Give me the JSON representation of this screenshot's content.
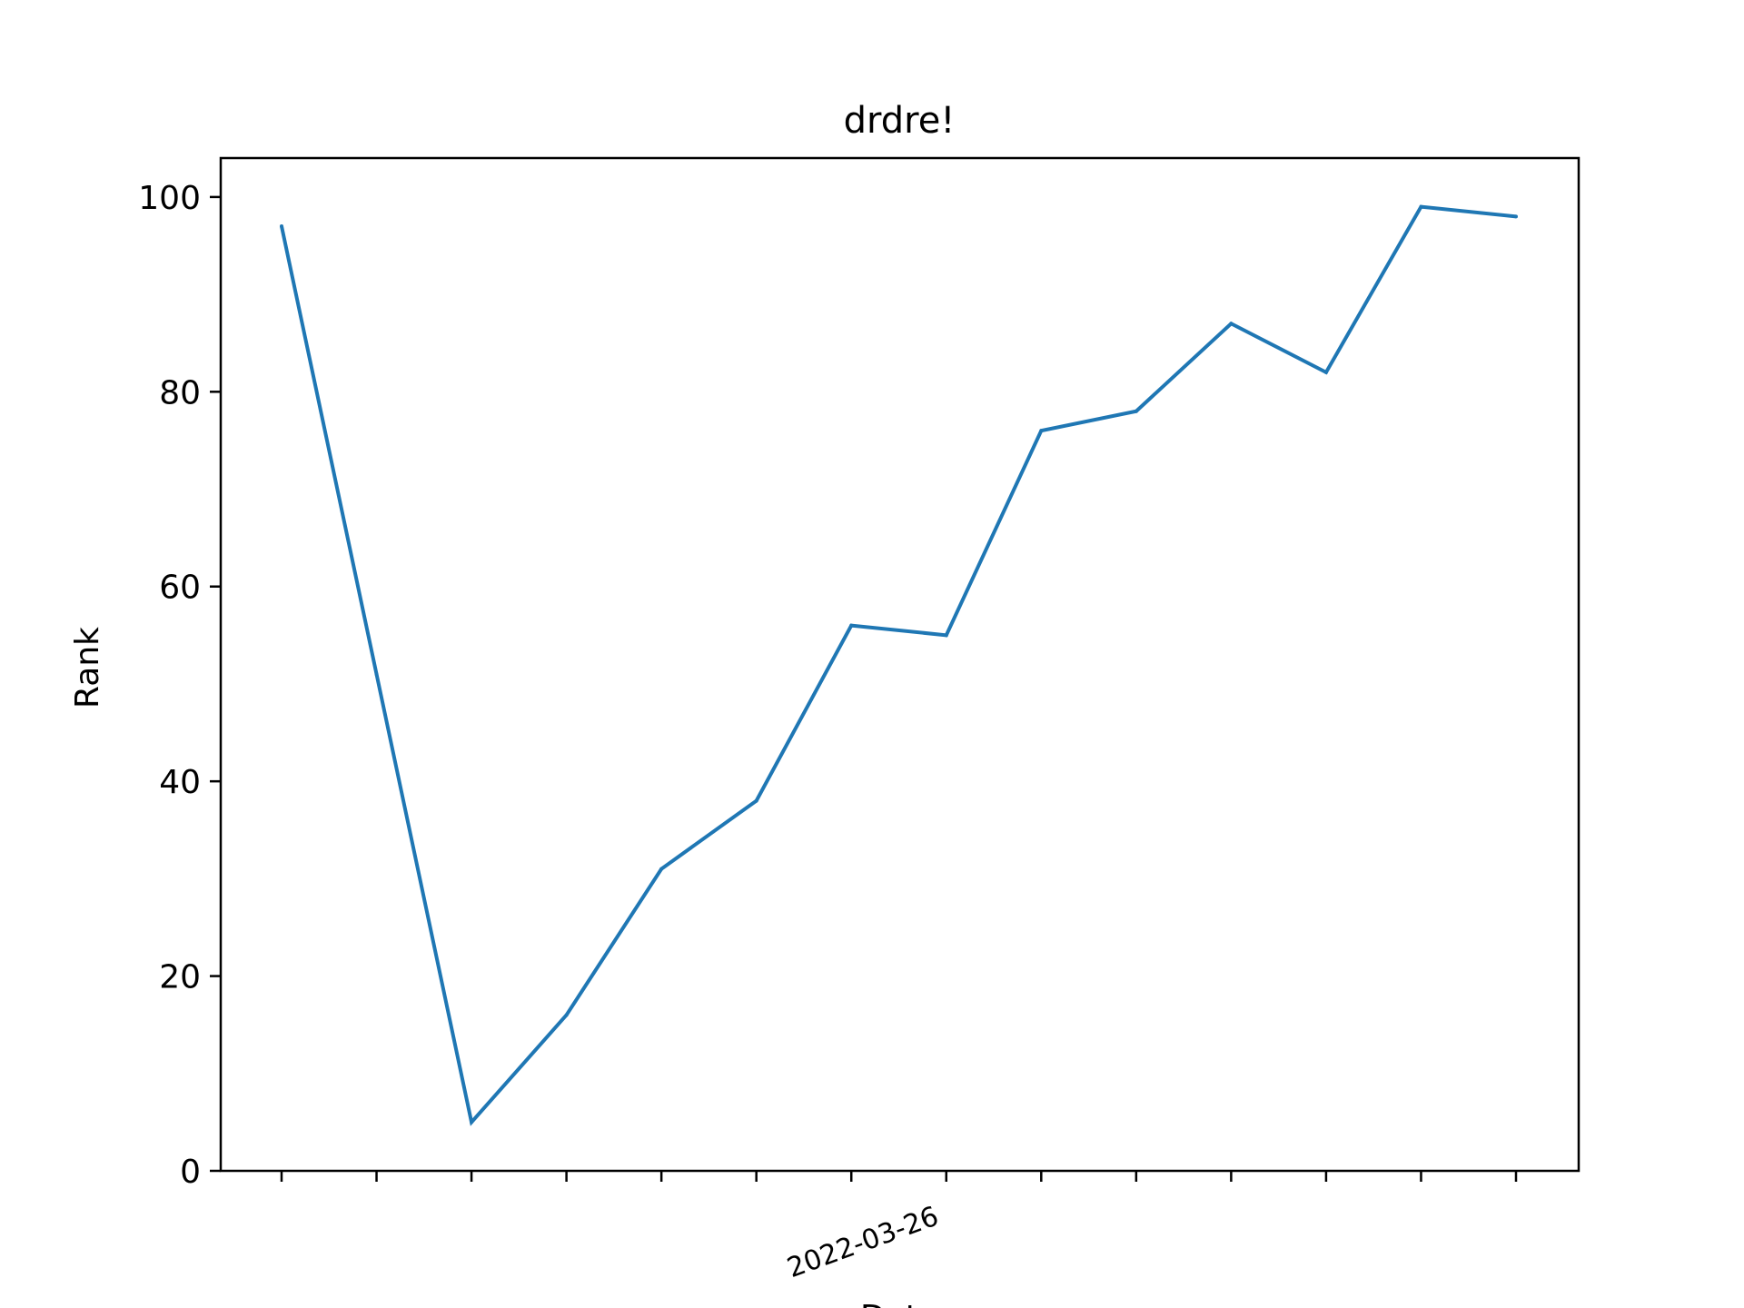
{
  "chart_data": {
    "type": "line",
    "title": "drdre!",
    "xlabel": "Date",
    "ylabel": "Rank",
    "ylim": [
      0,
      104
    ],
    "y_ticks": [
      0,
      20,
      40,
      60,
      80,
      100
    ],
    "x_tick_count": 14,
    "x_tick_labels": [
      {
        "index": 6,
        "label": "2022-03-26"
      }
    ],
    "grid": false,
    "legend": "none",
    "series": [
      {
        "color": "#1f77b4",
        "values": [
          97,
          51,
          5,
          16,
          31,
          38,
          56,
          55,
          76,
          78,
          87,
          82,
          99,
          98
        ]
      }
    ]
  }
}
